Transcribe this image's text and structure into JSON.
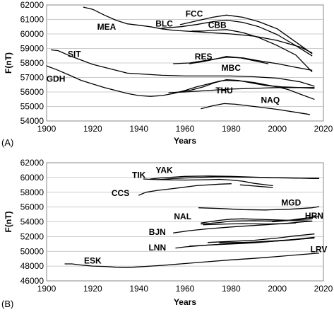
{
  "chart_data": [
    {
      "panel_label": "(A)",
      "type": "line",
      "xlabel": "Years",
      "ylabel": "F(nT)",
      "xlim": [
        1900,
        2020
      ],
      "ylim": [
        54000,
        62000
      ],
      "xticks": [
        "1900",
        "1920",
        "1940",
        "1960",
        "1980",
        "2000",
        "2020"
      ],
      "yticks": [
        "54000",
        "55000",
        "56000",
        "57000",
        "58000",
        "59000",
        "60000",
        "61000",
        "62000"
      ],
      "grid": "horizontal",
      "legend": "none",
      "series": [
        {
          "name": "FCC",
          "label_at": [
            1964,
            61400
          ],
          "x": [
            1958,
            1965,
            1972,
            1978,
            1985,
            1992,
            2000,
            2008,
            2015
          ],
          "y": [
            60650,
            60900,
            61150,
            61300,
            61150,
            60850,
            60350,
            59450,
            58650
          ]
        },
        {
          "name": "BLC",
          "label_at": [
            1951,
            60700
          ],
          "x": [
            1950,
            1958,
            1965,
            1972,
            1978,
            1985,
            1992,
            2000,
            2008,
            2015
          ],
          "y": [
            60400,
            60500,
            60650,
            60850,
            60950,
            60800,
            60500,
            59950,
            59200,
            58500
          ]
        },
        {
          "name": "CBB",
          "label_at": [
            1974,
            60600
          ],
          "x": [
            1963,
            1968,
            1972,
            1978,
            1985,
            1992,
            2000,
            2008,
            2015
          ],
          "y": [
            60200,
            60200,
            60250,
            60300,
            60100,
            59750,
            59200,
            58550,
            57400
          ]
        },
        {
          "name": "MEA",
          "label_at": [
            1926,
            60500
          ],
          "x": [
            1916,
            1920,
            1925,
            1930,
            1935,
            1940,
            1945,
            1950,
            1955,
            1960,
            1965,
            1970,
            1980,
            1990,
            2000,
            2010,
            2015
          ],
          "y": [
            61850,
            61700,
            61300,
            60950,
            60700,
            60600,
            60500,
            60350,
            60250,
            60200,
            60150,
            60100,
            60000,
            59850,
            59550,
            59100,
            58700
          ]
        },
        {
          "name": "SIT",
          "label_at": [
            1912,
            58600
          ],
          "x": [
            1902,
            1905,
            1910,
            1915,
            1920,
            1925,
            1930,
            1935,
            1940,
            1945,
            1950,
            1960,
            1970,
            1980,
            1990,
            2000,
            2010,
            2016
          ],
          "y": [
            58900,
            58850,
            58500,
            58200,
            57900,
            57700,
            57500,
            57300,
            57250,
            57200,
            57150,
            57100,
            57100,
            57100,
            57050,
            56950,
            56700,
            56400
          ]
        },
        {
          "name": "RES",
          "label_at": [
            1968,
            58450
          ],
          "x": [
            1955,
            1962,
            1970,
            1978,
            1985,
            1992,
            2000,
            2008,
            2015
          ],
          "y": [
            57950,
            58000,
            58200,
            58400,
            58350,
            58150,
            57950,
            57700,
            57500
          ]
        },
        {
          "name": "MBC",
          "label_at": [
            1980,
            57650
          ],
          "x": [
            1962,
            1968,
            1974,
            1978,
            1984,
            1990,
            1996
          ],
          "y": [
            57950,
            58100,
            58300,
            58450,
            58350,
            58150,
            57950
          ]
        },
        {
          "name": "GDH",
          "label_at": [
            1904,
            56900
          ],
          "x": [
            1900,
            1905,
            1910,
            1915,
            1920,
            1925,
            1930,
            1935,
            1940,
            1945,
            1950,
            1955,
            1960,
            1965,
            1970,
            1975,
            1978,
            1985,
            1990,
            1995,
            2000,
            2005,
            2010,
            2016
          ],
          "y": [
            57800,
            57500,
            57150,
            56800,
            56550,
            56300,
            56100,
            55900,
            55750,
            55700,
            55750,
            55900,
            56100,
            56350,
            56550,
            56750,
            56800,
            56750,
            56650,
            56500,
            56350,
            56150,
            55850,
            55500
          ]
        },
        {
          "name": "",
          "x": [
            1953,
            1960,
            1970,
            1980,
            1990,
            2000,
            2010,
            2016
          ],
          "y": [
            55950,
            56000,
            56100,
            56200,
            56250,
            56300,
            56300,
            56250
          ]
        },
        {
          "name": "THU",
          "label_at": [
            1977,
            56100
          ],
          "x": [
            1955,
            1962,
            1968,
            1973,
            1978,
            1983,
            1988,
            1995,
            2002,
            2010,
            2016
          ],
          "y": [
            55950,
            56100,
            56350,
            56650,
            56850,
            56800,
            56650,
            56450,
            56350,
            56300,
            56300
          ]
        },
        {
          "name": "NAQ",
          "label_at": [
            1997,
            55450
          ],
          "x": [
            1967,
            1972,
            1977,
            1982,
            1990,
            2000,
            2008,
            2014
          ],
          "y": [
            54850,
            55050,
            55200,
            55150,
            55000,
            54800,
            54600,
            54450
          ]
        }
      ]
    },
    {
      "panel_label": "(B)",
      "type": "line",
      "xlabel": "Years",
      "ylabel": "F(nT)",
      "xlim": [
        1900,
        2020
      ],
      "ylim": [
        46000,
        62000
      ],
      "xticks": [
        "1900",
        "1920",
        "1940",
        "1960",
        "1980",
        "2000",
        "2020"
      ],
      "yticks": [
        "46000",
        "48000",
        "50000",
        "52000",
        "54000",
        "56000",
        "58000",
        "60000",
        "62000"
      ],
      "grid": "horizontal",
      "legend": "none",
      "series": [
        {
          "name": "YAK",
          "label_at": [
            1951,
            61000
          ],
          "x": [
            1945,
            1950,
            1960,
            1970,
            1980,
            1990,
            2000,
            2010,
            2018
          ],
          "y": [
            59800,
            59950,
            60150,
            60200,
            60150,
            60050,
            59950,
            59900,
            59900
          ]
        },
        {
          "name": "",
          "x": [
            1948,
            1955,
            1965,
            1975,
            1985,
            1995,
            2005,
            2015,
            2018
          ],
          "y": [
            59700,
            59850,
            60000,
            60100,
            60050,
            60000,
            59950,
            59850,
            59850
          ]
        },
        {
          "name": "TIK",
          "label_at": [
            1940,
            60300
          ],
          "x": [
            1942,
            1945,
            1950,
            1960,
            1970,
            1975,
            1980,
            1985,
            1990,
            1998
          ],
          "y": [
            59800,
            59750,
            59700,
            59650,
            59700,
            59750,
            59650,
            59500,
            59200,
            58900
          ]
        },
        {
          "name": "CCS",
          "label_at": [
            1932,
            57900
          ],
          "x": [
            1940,
            1943,
            1948,
            1955,
            1965,
            1975,
            1980
          ],
          "y": [
            57600,
            58000,
            58250,
            58500,
            58900,
            59100,
            59150
          ]
        },
        {
          "name": "",
          "x": [
            1984,
            1990,
            1998
          ],
          "y": [
            59000,
            58850,
            58650
          ]
        },
        {
          "name": "MGD",
          "label_at": [
            2006,
            56600
          ],
          "x": [
            1966,
            1975,
            1985,
            1995,
            2005,
            2015,
            2018
          ],
          "y": [
            55900,
            55800,
            55650,
            55600,
            55700,
            55900,
            56050
          ]
        },
        {
          "name": "HRN",
          "label_at": [
            2016,
            54800
          ],
          "x": [
            1998,
            2005,
            2010,
            2015,
            2018
          ],
          "y": [
            54000,
            54200,
            54400,
            54600,
            54700
          ]
        },
        {
          "name": "NAL",
          "label_at": [
            1959,
            54700
          ],
          "x": [
            1967,
            1975,
            1980,
            1985,
            1995,
            2005,
            2015
          ],
          "y": [
            53850,
            54200,
            54350,
            54400,
            54300,
            54200,
            54100
          ]
        },
        {
          "name": "",
          "x": [
            1967,
            1975,
            1980,
            1990,
            1998,
            2005,
            2010,
            2015
          ],
          "y": [
            53700,
            53900,
            54100,
            54150,
            54100,
            54200,
            54300,
            54400
          ]
        },
        {
          "name": "",
          "x": [
            1968,
            1978,
            1985,
            1995,
            2002,
            2008,
            2015
          ],
          "y": [
            53600,
            53700,
            53750,
            53700,
            53750,
            53900,
            54100
          ]
        },
        {
          "name": "BJN",
          "label_at": [
            1948,
            52600
          ],
          "x": [
            1955,
            1962,
            1970,
            1980,
            1990,
            2000,
            2008
          ],
          "y": [
            52500,
            52800,
            53050,
            53300,
            53500,
            53700,
            53850
          ]
        },
        {
          "name": "LNN",
          "label_at": [
            1948,
            50500
          ],
          "x": [
            1956,
            1960,
            1970,
            1980,
            1990,
            2000,
            2010,
            2016
          ],
          "y": [
            50450,
            50600,
            50850,
            51050,
            51250,
            51450,
            51650,
            51800
          ]
        },
        {
          "name": "",
          "x": [
            1962,
            1970,
            1980,
            1990,
            2000,
            2010,
            2016
          ],
          "y": [
            50700,
            50850,
            51000,
            51150,
            51400,
            51700,
            51900
          ]
        },
        {
          "name": "",
          "x": [
            1975,
            1985,
            1995,
            2005,
            2010,
            2016
          ],
          "y": [
            51150,
            51200,
            51300,
            51500,
            51650,
            51850
          ]
        },
        {
          "name": "LRV",
          "label_at": [
            2018,
            50250
          ],
          "x": [
            1970,
            1980,
            1990,
            2000,
            2008,
            2016
          ],
          "y": [
            51200,
            51350,
            51500,
            51800,
            52100,
            52350
          ]
        },
        {
          "name": "ESK",
          "label_at": [
            1920,
            48750
          ],
          "x": [
            1908,
            1911,
            1915,
            1920,
            1925,
            1930,
            1935,
            1940,
            1950,
            1960,
            1970,
            1980,
            1990,
            2000,
            2010,
            2018
          ],
          "y": [
            48300,
            48300,
            48150,
            48000,
            47950,
            47850,
            47800,
            47900,
            48100,
            48350,
            48600,
            48850,
            49050,
            49300,
            49550,
            49750
          ]
        }
      ]
    }
  ]
}
